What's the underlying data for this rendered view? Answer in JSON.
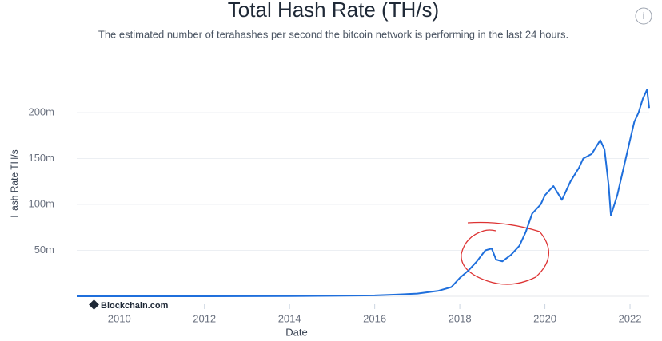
{
  "chart_data": {
    "type": "line",
    "title": "Total Hash Rate (TH/s)",
    "subtitle": "The estimated number of terahashes per second the bitcoin network is performing in the last 24 hours.",
    "x_label": "Date",
    "y_label": "Hash Rate TH/s",
    "watermark": "Blockchain.com",
    "info_icon": "i",
    "x": [
      2009.0,
      2010.0,
      2011.0,
      2012.0,
      2013.0,
      2014.0,
      2015.0,
      2016.0,
      2016.5,
      2017.0,
      2017.5,
      2017.8,
      2018.0,
      2018.2,
      2018.4,
      2018.6,
      2018.75,
      2018.85,
      2019.0,
      2019.2,
      2019.4,
      2019.55,
      2019.7,
      2019.9,
      2020.0,
      2020.2,
      2020.4,
      2020.6,
      2020.8,
      2020.9,
      2021.1,
      2021.3,
      2021.4,
      2021.5,
      2021.55,
      2021.7,
      2021.9,
      2022.0,
      2022.1,
      2022.2,
      2022.3,
      2022.4,
      2022.45
    ],
    "series": [
      {
        "name": "Hash Rate",
        "color": "#1f6fdc",
        "values": [
          0,
          0,
          0,
          0,
          100000,
          300000,
          500000,
          1000000,
          1800000,
          3000000,
          6000000,
          10000000,
          20000000,
          28000000,
          38000000,
          50000000,
          52000000,
          40000000,
          38000000,
          45000000,
          55000000,
          70000000,
          90000000,
          100000000,
          110000000,
          120000000,
          105000000,
          125000000,
          140000000,
          150000000,
          155000000,
          170000000,
          160000000,
          120000000,
          88000000,
          110000000,
          150000000,
          170000000,
          190000000,
          200000000,
          215000000,
          225000000,
          205000000
        ]
      }
    ],
    "xlim": [
      2009.0,
      2022.45
    ],
    "xticks": [
      2010,
      2012,
      2014,
      2016,
      2018,
      2020,
      2022
    ],
    "ylim": [
      0,
      240000000
    ],
    "yticks": [
      {
        "value": 50000000,
        "label": "50m"
      },
      {
        "value": 100000000,
        "label": "100m"
      },
      {
        "value": 150000000,
        "label": "150m"
      },
      {
        "value": 200000000,
        "label": "200m"
      }
    ],
    "grid": true
  }
}
